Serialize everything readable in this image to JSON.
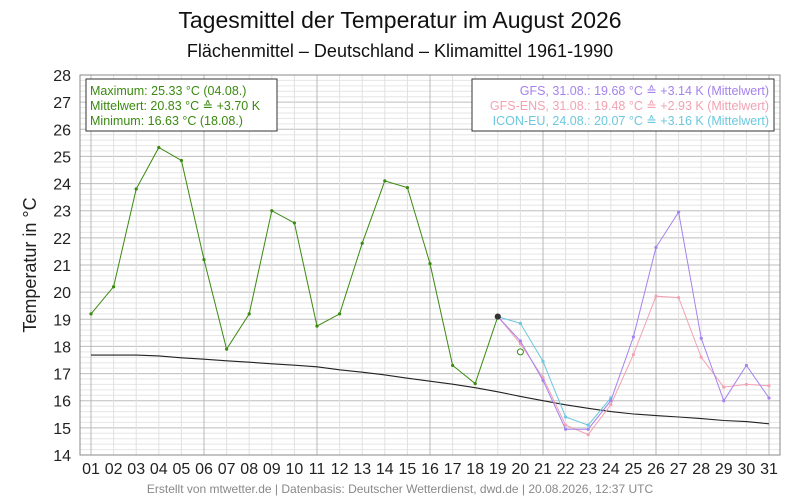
{
  "chart_data": {
    "type": "line",
    "title": "Tagesmittel der Temperatur im August 2026",
    "subtitle": "Flächenmittel – Deutschland – Klimamittel 1961-1990",
    "ylabel": "Temperatur in °C",
    "ylim": [
      14,
      28
    ],
    "yticks": [
      "14",
      "15",
      "16",
      "17",
      "18",
      "19",
      "20",
      "21",
      "22",
      "23",
      "24",
      "25",
      "26",
      "27",
      "28"
    ],
    "categories": [
      "01",
      "02",
      "03",
      "04",
      "05",
      "06",
      "07",
      "08",
      "09",
      "10",
      "11",
      "12",
      "13",
      "14",
      "15",
      "16",
      "17",
      "18",
      "19",
      "20",
      "21",
      "22",
      "23",
      "24",
      "25",
      "26",
      "27",
      "28",
      "29",
      "30",
      "31"
    ],
    "grid": true,
    "stats_box": {
      "line1": "Maximum: 25.33 °C (04.08.)",
      "line2": "Mittelwert: 20.83 °C ≙ +3.70 K",
      "line3": "Minimum:  16.63 °C (18.08.)"
    },
    "model_legend": {
      "line1": "GFS, 31.08.: 19.68 °C ≙ +3.14 K (Mittelwert)",
      "line2": "GFS-ENS, 31.08.: 19.48 °C ≙ +2.93 K (Mittelwert)",
      "line3": "ICON-EU, 24.08.: 20.07 °C ≙ +3.16 K (Mittelwert)"
    },
    "footer": "Erstellt von mtwetter.de | Datenbasis: Deutscher Wetterdienst, dwd.de | 20.08.2026, 12:37 UTC",
    "series": [
      {
        "key": "observed",
        "color": "#3a8a10",
        "x": [
          1,
          2,
          3,
          4,
          5,
          6,
          7,
          8,
          9,
          10,
          11,
          12,
          13,
          14,
          15,
          16,
          17,
          18,
          19
        ],
        "values": [
          19.2,
          20.2,
          23.8,
          25.33,
          24.85,
          21.2,
          17.9,
          19.2,
          23.0,
          22.55,
          18.75,
          19.2,
          21.8,
          24.1,
          23.85,
          21.05,
          17.3,
          16.63,
          19.1
        ]
      },
      {
        "key": "climate",
        "color": "#222222",
        "x": [
          1,
          2,
          3,
          4,
          5,
          6,
          7,
          8,
          9,
          10,
          11,
          12,
          13,
          14,
          15,
          16,
          17,
          18,
          19,
          20,
          21,
          22,
          23,
          24,
          25,
          26,
          27,
          28,
          29,
          30,
          31
        ],
        "values": [
          17.68,
          17.68,
          17.68,
          17.65,
          17.58,
          17.53,
          17.47,
          17.42,
          17.36,
          17.31,
          17.25,
          17.14,
          17.05,
          16.95,
          16.83,
          16.72,
          16.61,
          16.48,
          16.33,
          16.16,
          16.0,
          15.85,
          15.72,
          15.6,
          15.51,
          15.45,
          15.4,
          15.34,
          15.27,
          15.23,
          15.15
        ]
      },
      {
        "key": "gfs",
        "name": "GFS",
        "color": "#a582ee",
        "x": [
          19,
          20,
          21,
          22,
          23,
          24,
          25,
          26,
          27,
          28,
          29,
          30,
          31
        ],
        "values": [
          19.1,
          18.2,
          16.75,
          14.95,
          14.95,
          16.0,
          18.35,
          21.65,
          22.95,
          18.3,
          16.0,
          17.3,
          16.1
        ]
      },
      {
        "key": "gfs_ens",
        "name": "GFS-ENS",
        "color": "#f2a2b2",
        "x": [
          19,
          20,
          21,
          22,
          23,
          24,
          25,
          26,
          27,
          28,
          29,
          30,
          31
        ],
        "values": [
          19.1,
          18.1,
          16.85,
          15.1,
          14.75,
          15.85,
          17.7,
          19.85,
          19.8,
          17.6,
          16.5,
          16.6,
          16.55
        ]
      },
      {
        "key": "icon_eu",
        "name": "ICON-EU",
        "color": "#6cc8de",
        "x": [
          19,
          20,
          21,
          22,
          23,
          24
        ],
        "values": [
          19.1,
          18.85,
          17.45,
          15.4,
          15.1,
          16.1
        ]
      }
    ],
    "markers": [
      {
        "key": "today-marker",
        "x": 19,
        "y": 19.1,
        "color": "#333333",
        "style": "filled"
      },
      {
        "key": "forecast-open-marker",
        "x": 20,
        "y": 17.8,
        "color": "#3a8a10",
        "style": "open"
      }
    ]
  }
}
